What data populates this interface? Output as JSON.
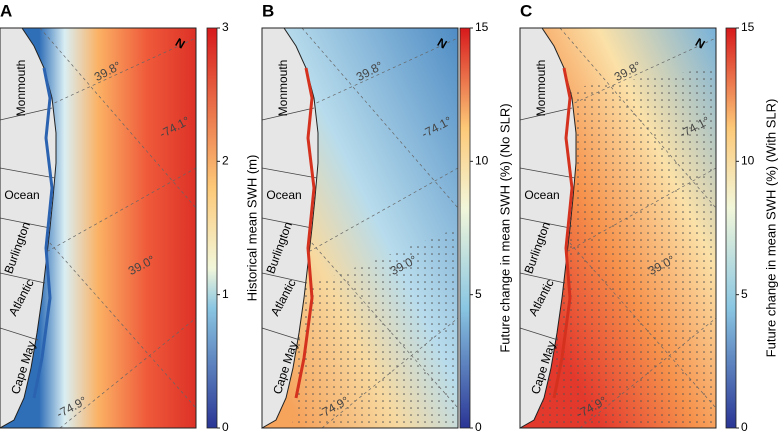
{
  "panels": [
    {
      "label": "A",
      "colorbar": {
        "title": "Historical mean SWH (m)",
        "ticks": [
          0,
          1,
          2,
          3
        ]
      },
      "counties": [
        "Monmouth",
        "Ocean",
        "Burlington",
        "Atlantic",
        "Cape May"
      ],
      "graticule": [
        "39.8°",
        "-74.1°",
        "39.0°",
        "-74.9°"
      ]
    },
    {
      "label": "B",
      "colorbar": {
        "title": "Future change in mean SWH (%) (No SLR)",
        "ticks": [
          0,
          5,
          10,
          15
        ]
      },
      "counties": [
        "Monmouth",
        "Ocean",
        "Burlington",
        "Atlantic",
        "Cape May"
      ],
      "graticule": [
        "39.8°",
        "-74.1°",
        "39.0°",
        "-74.9°"
      ]
    },
    {
      "label": "C",
      "colorbar": {
        "title": "Future change in mean SWH (%) (With SLR)",
        "ticks": [
          0,
          5,
          10,
          15
        ]
      },
      "counties": [
        "Monmouth",
        "Ocean",
        "Burlington",
        "Atlantic",
        "Cape May"
      ],
      "graticule": [
        "39.8°",
        "-74.1°",
        "39.0°",
        "-74.9°"
      ]
    }
  ]
}
